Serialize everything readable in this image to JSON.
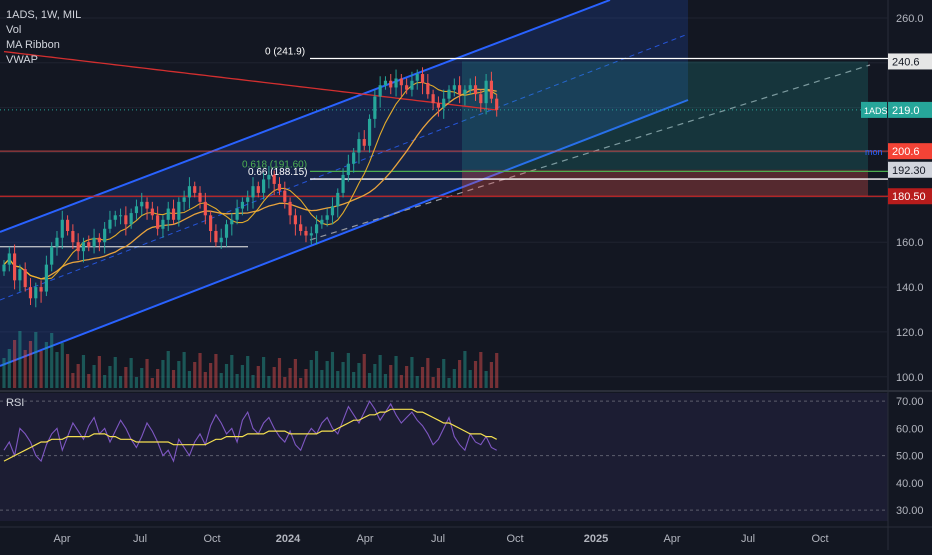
{
  "legend": {
    "symbol_line": "1ADS, 1W, MIL",
    "indicators": [
      "Vol",
      "MA Ribbon",
      "VWAP"
    ]
  },
  "rsi_label": "RSI",
  "colors": {
    "up": "#26a69a",
    "down": "#ef5350",
    "channel": "#2962ff",
    "ma_fast": "#f7b928",
    "ma_slow": "#e8a33d",
    "ma_long": "#d32f2f",
    "rsi": "#7e57c2",
    "rsi_ma": "#f5e050"
  },
  "chart_data": {
    "type": "candlestick",
    "symbol": "1ADS",
    "interval": "1W",
    "exchange": "MIL",
    "price_axis": {
      "min": 95,
      "max": 268,
      "ticks": [
        "260.0",
        "240.0",
        "220.0",
        "200.0",
        "180.0",
        "160.0",
        "140.0",
        "120.0",
        "100.0"
      ]
    },
    "time_axis": {
      "labels": [
        "Apr",
        "Jul",
        "Oct",
        "2024",
        "Apr",
        "Jul",
        "Oct",
        "2025",
        "Apr",
        "Jul",
        "Oct"
      ]
    },
    "closes": [
      150,
      155,
      143,
      148,
      140,
      135,
      140,
      138,
      150,
      158,
      162,
      170,
      165,
      160,
      156,
      160,
      158,
      162,
      160,
      166,
      170,
      172,
      172,
      168,
      173,
      176,
      178,
      175,
      172,
      166,
      170,
      175,
      170,
      178,
      180,
      185,
      182,
      178,
      172,
      165,
      160,
      162,
      168,
      170,
      175,
      178,
      180,
      185,
      182,
      188,
      190,
      186,
      183,
      178,
      172,
      168,
      165,
      163,
      164,
      168,
      170,
      172,
      176,
      182,
      190,
      195,
      200,
      206,
      203,
      215,
      225,
      230,
      232,
      229,
      233,
      230,
      228,
      232,
      235,
      231,
      226,
      222,
      220,
      224,
      228,
      230,
      226,
      228,
      230,
      226,
      222,
      232,
      224,
      219
    ],
    "price_labels": [
      {
        "text": "240.6",
        "value": 240.6,
        "style": "white"
      },
      {
        "symbol": "1ADS",
        "text": "219.0",
        "value": 219.0,
        "style": "teal"
      },
      {
        "tag": "mon",
        "text": "200.6",
        "value": 200.6,
        "style": "red"
      },
      {
        "text": "192.30",
        "value": 192.3,
        "style": "gray"
      },
      {
        "text": "180.50",
        "value": 180.5,
        "style": "darkred"
      }
    ],
    "fib_levels": [
      {
        "label": "0 (241.9)",
        "value": 241.9
      },
      {
        "label": "0.618 (191.60)",
        "value": 191.6
      },
      {
        "label": "0.66 (188.15)",
        "value": 188.15
      }
    ],
    "rsi": {
      "ticks": [
        "70.00",
        "60.00",
        "50.00",
        "40.00",
        "30.00"
      ],
      "range": [
        26,
        73
      ],
      "values": [
        52,
        55,
        50,
        60,
        58,
        55,
        50,
        48,
        54,
        58,
        60,
        52,
        57,
        62,
        59,
        56,
        61,
        64,
        58,
        60,
        55,
        59,
        63,
        60,
        56,
        53,
        57,
        62,
        59,
        55,
        50,
        52,
        48,
        56,
        53,
        50,
        55,
        58,
        54,
        61,
        65,
        62,
        58,
        60,
        55,
        63,
        66,
        60,
        58,
        62,
        64,
        60,
        57,
        55,
        59,
        54,
        52,
        57,
        60,
        58,
        62,
        64,
        60,
        58,
        63,
        68,
        65,
        62,
        66,
        70,
        67,
        63,
        66,
        69,
        65,
        62,
        64,
        66,
        63,
        61,
        58,
        54,
        56,
        60,
        64,
        57,
        54,
        52,
        58,
        55,
        54,
        57,
        53,
        52
      ],
      "ma_values": [
        48,
        49,
        50,
        51,
        52,
        53,
        54,
        55,
        55,
        56,
        56,
        56,
        57,
        57,
        57,
        57,
        57,
        58,
        58,
        58,
        57,
        57,
        56,
        56,
        56,
        55,
        55,
        55,
        55,
        55,
        55,
        55,
        54,
        54,
        54,
        54,
        54,
        54,
        54,
        55,
        56,
        56,
        57,
        57,
        57,
        57,
        58,
        58,
        58,
        58,
        59,
        59,
        59,
        59,
        58,
        58,
        58,
        58,
        58,
        58,
        59,
        59,
        59,
        60,
        61,
        62,
        63,
        63,
        64,
        65,
        65,
        66,
        66,
        67,
        67,
        67,
        67,
        67,
        66,
        66,
        65,
        64,
        63,
        62,
        62,
        61,
        60,
        59,
        58,
        58,
        58,
        57,
        57,
        56
      ]
    }
  }
}
